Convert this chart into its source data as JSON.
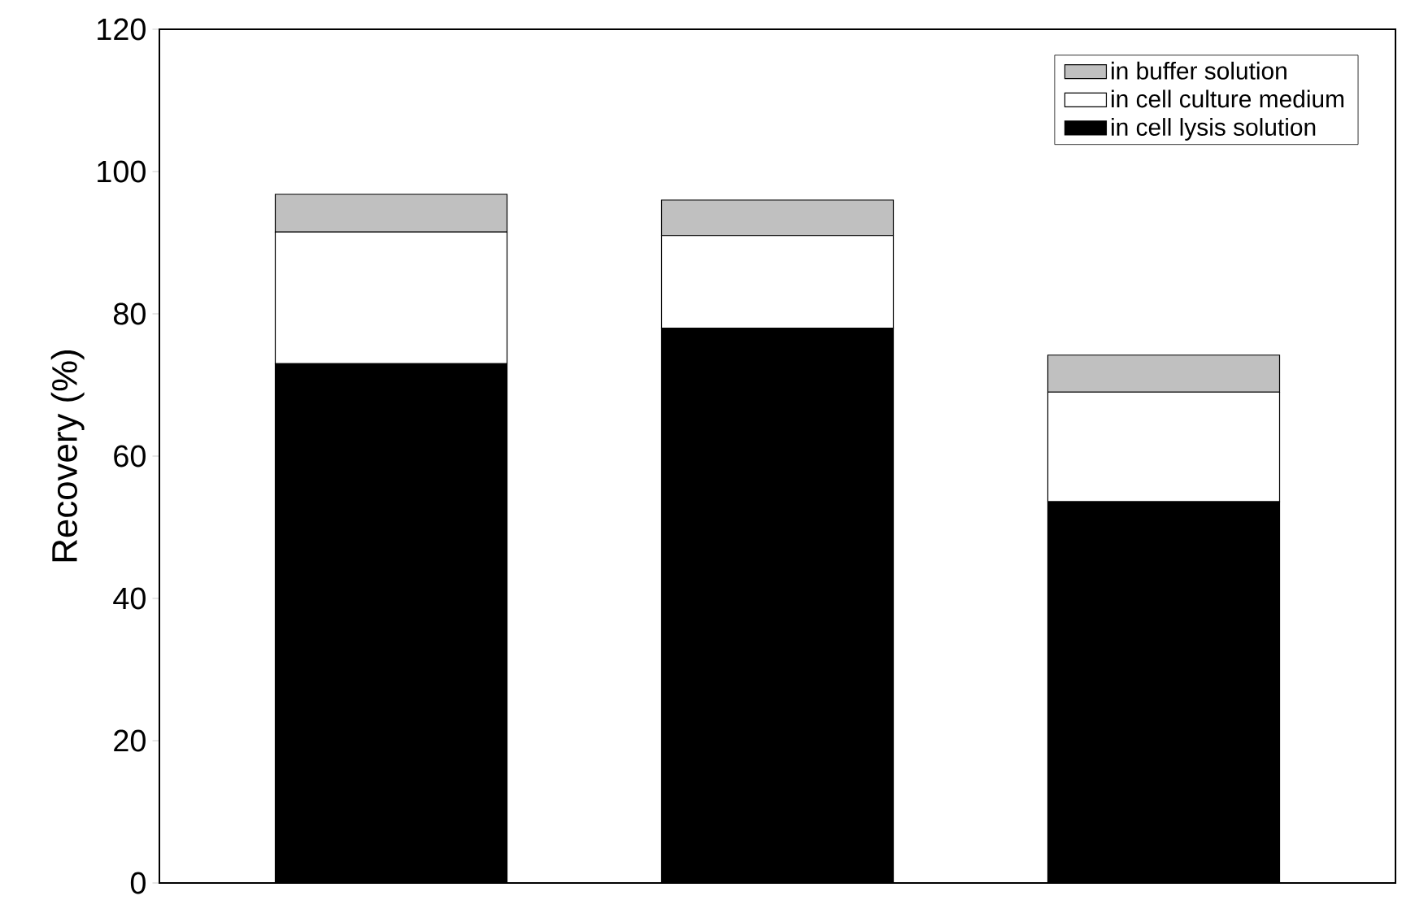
{
  "chart_data": {
    "type": "bar",
    "stacked": true,
    "ylabel": "Recovery (%)",
    "categories": [
      null,
      null,
      null
    ],
    "series": [
      {
        "name": "in cell lysis solution",
        "color": "#000000",
        "values": [
          73,
          78,
          53.6
        ]
      },
      {
        "name": "in cell culture medium",
        "color": "#ffffff",
        "values": [
          18.5,
          13,
          15.4
        ]
      },
      {
        "name": "in buffer solution",
        "color": "#c0c0c0",
        "values": [
          5.3,
          5,
          5.2
        ]
      }
    ],
    "ylim": [
      0,
      120
    ],
    "yticks": [
      0,
      20,
      40,
      60,
      80,
      100,
      120
    ],
    "tick_labels": "y",
    "legend": "top right"
  }
}
